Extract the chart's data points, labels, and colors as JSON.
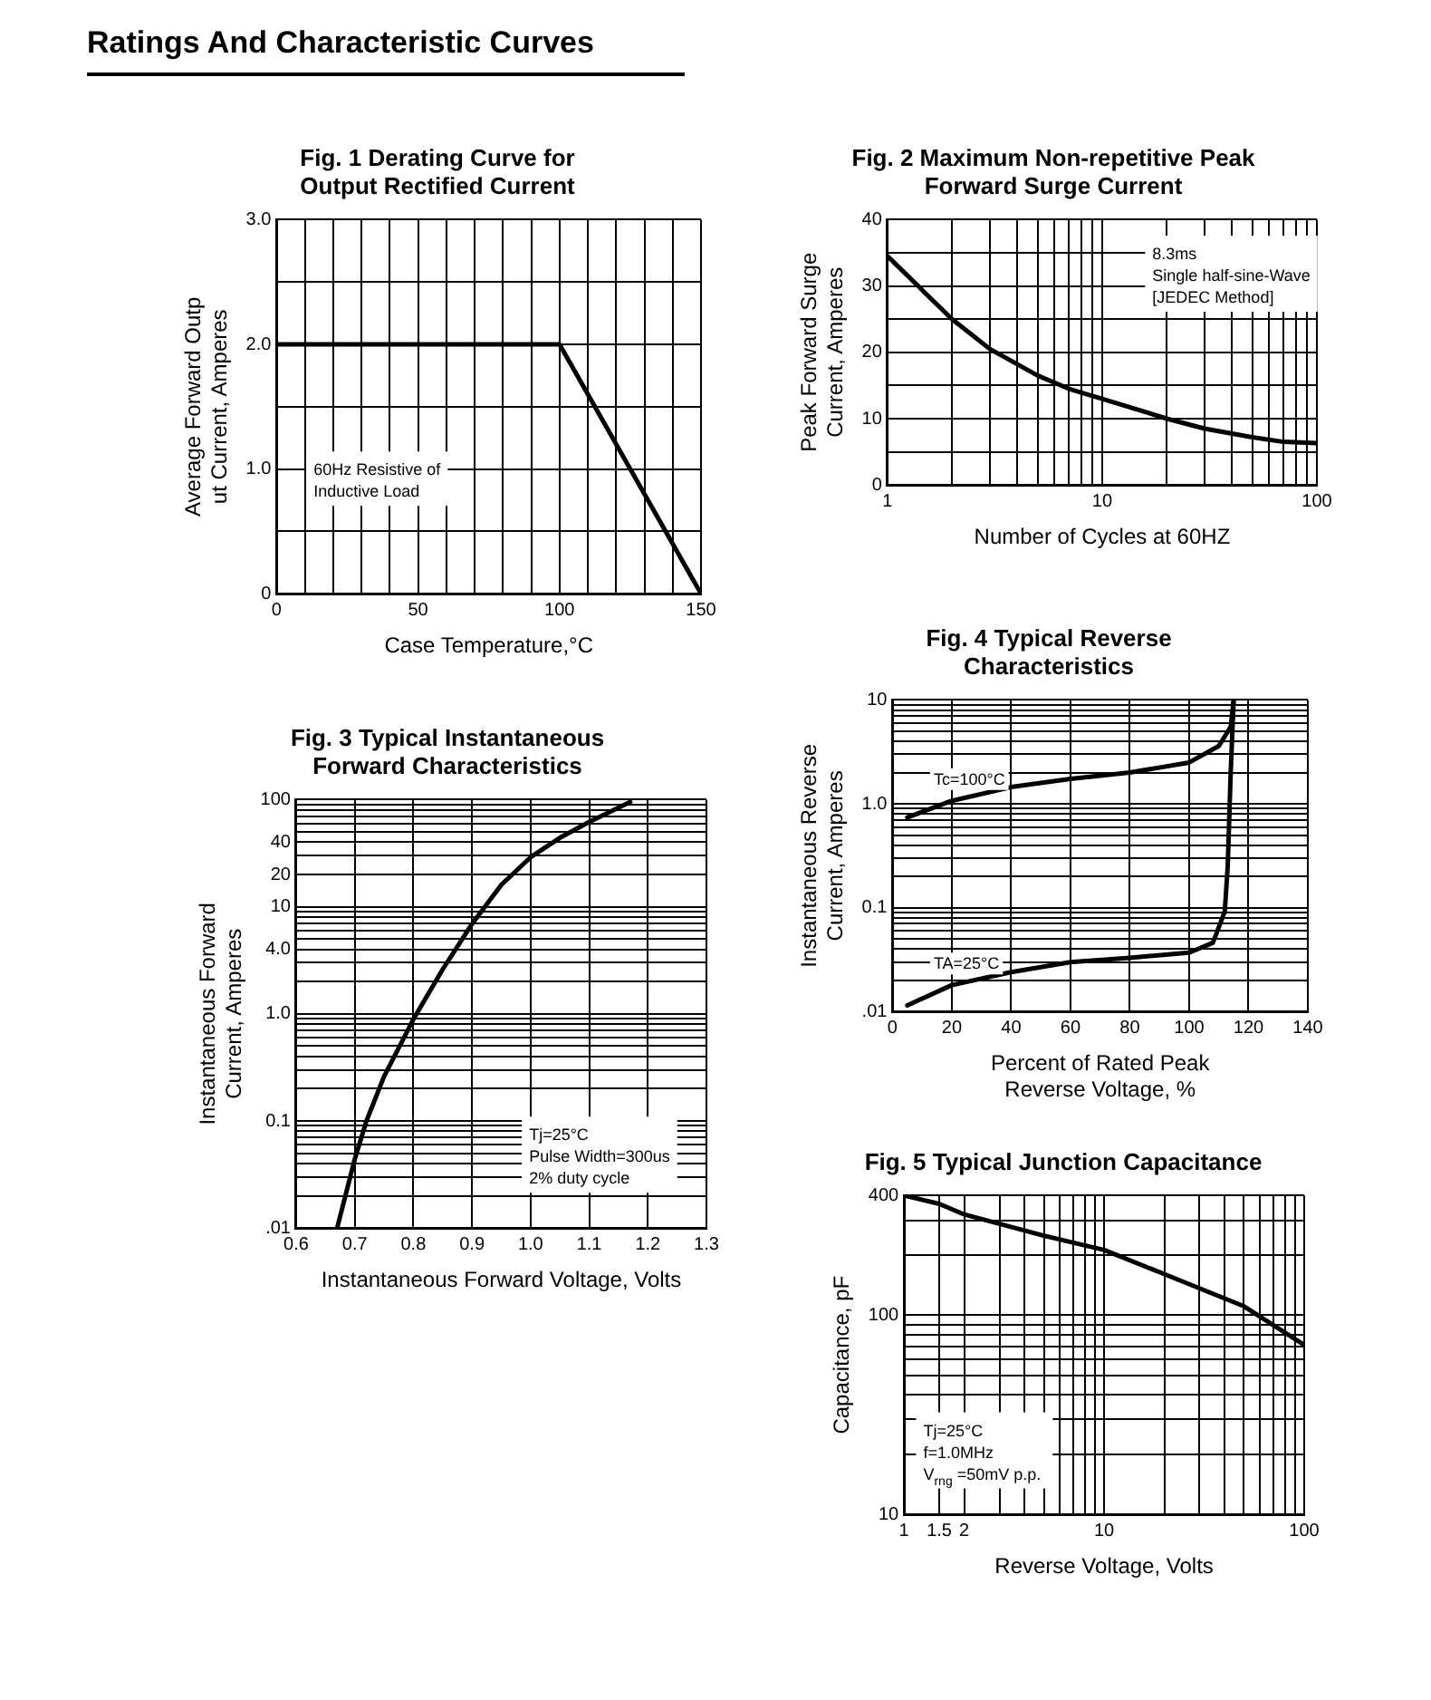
{
  "chart_data": [
    {
      "type": "other",
      "title": "Ratings And Characteristic Curves"
    },
    {
      "type": "line",
      "title": "Fig. 1 Derating Curve for\nOutput Rectified Current",
      "xlabel": "Case Temperature,°C",
      "ylabel": "Average Forward Outp\nut Current, Amperes",
      "xlim": [
        0,
        150
      ],
      "ylim": [
        0,
        3
      ],
      "xticks": [
        0,
        {
          "value": 10,
          "label": null
        },
        {
          "value": 20,
          "label": null
        },
        {
          "value": 30,
          "label": null
        },
        {
          "value": 40,
          "label": null
        },
        50,
        {
          "value": 60,
          "label": null
        },
        {
          "value": 70,
          "label": null
        },
        {
          "value": 80,
          "label": null
        },
        {
          "value": 90,
          "label": null
        },
        100,
        {
          "value": 110,
          "label": null
        },
        {
          "value": 120,
          "label": null
        },
        {
          "value": 130,
          "label": null
        },
        {
          "value": 140,
          "label": null
        },
        150
      ],
      "yticks": [
        0,
        {
          "value": 0.5,
          "label": null
        },
        {
          "value": 1,
          "label": "1.0"
        },
        {
          "value": 1.5,
          "label": null
        },
        {
          "value": 2,
          "label": "2.0"
        },
        {
          "value": 2.5,
          "label": null
        },
        {
          "value": 3,
          "label": "3.0"
        }
      ],
      "grid": true,
      "marker": "none",
      "line_style": "solid",
      "annotations": [
        "60Hz Resistive of\nInductive Load"
      ],
      "series": [
        {
          "color": "#000000",
          "x": [
            0,
            100,
            150
          ],
          "values": [
            2,
            2,
            0
          ]
        }
      ]
    },
    {
      "type": "line",
      "title": "Fig. 2 Maximum Non-repetitive Peak\nForward Surge Current",
      "xlabel": "Number of Cycles at 60HZ",
      "ylabel": "Peak Forward Surge\nCurrent, Amperes",
      "log": "x",
      "xlim": [
        1,
        100
      ],
      "ylim": [
        0,
        40
      ],
      "xticks": [
        1,
        {
          "value": 2,
          "label": null
        },
        {
          "value": 3,
          "label": null
        },
        {
          "value": 4,
          "label": null
        },
        {
          "value": 5,
          "label": null
        },
        {
          "value": 6,
          "label": null
        },
        {
          "value": 7,
          "label": null
        },
        {
          "value": 8,
          "label": null
        },
        {
          "value": 9,
          "label": null
        },
        10,
        {
          "value": 20,
          "label": null
        },
        {
          "value": 30,
          "label": null
        },
        {
          "value": 40,
          "label": null
        },
        {
          "value": 50,
          "label": null
        },
        {
          "value": 60,
          "label": null
        },
        {
          "value": 70,
          "label": null
        },
        {
          "value": 80,
          "label": null
        },
        {
          "value": 90,
          "label": null
        },
        100
      ],
      "yticks": [
        0,
        {
          "value": 5,
          "label": null
        },
        10,
        {
          "value": 15,
          "label": null
        },
        20,
        {
          "value": 25,
          "label": null
        },
        30,
        {
          "value": 35,
          "label": null
        },
        40
      ],
      "grid": true,
      "marker": "none",
      "line_style": "solid",
      "annotations": [
        "8.3ms\nSingle half-sine-Wave\n[JEDEC Method]"
      ],
      "series": [
        {
          "color": "#000000",
          "x": [
            1,
            2,
            3,
            5,
            7,
            10,
            20,
            30,
            50,
            70,
            100
          ],
          "values": [
            34.5,
            25,
            20.5,
            16.5,
            14.5,
            13,
            10,
            8.5,
            7.2,
            6.5,
            6.3
          ]
        }
      ]
    },
    {
      "type": "line",
      "title": "Fig. 3 Typical Instantaneous\nForward Characteristics",
      "xlabel": "Instantaneous Forward Voltage, Volts",
      "ylabel": "Instantaneous Forward\nCurrent, Amperes",
      "log": "y",
      "xlim": [
        0.6,
        1.3
      ],
      "ylim": [
        0.01,
        100
      ],
      "xticks": [
        0.6,
        0.7,
        0.8,
        0.9,
        {
          "value": 1,
          "label": "1.0"
        },
        1.1,
        1.2,
        1.3
      ],
      "yticks": [
        {
          "value": 0.01,
          "label": ".01"
        },
        {
          "value": 0.02,
          "label": null
        },
        {
          "value": 0.03,
          "label": null
        },
        {
          "value": 0.04,
          "label": null
        },
        {
          "value": 0.05,
          "label": null
        },
        {
          "value": 0.06,
          "label": null
        },
        {
          "value": 0.07,
          "label": null
        },
        {
          "value": 0.08,
          "label": null
        },
        {
          "value": 0.09,
          "label": null
        },
        0.1,
        {
          "value": 0.2,
          "label": null
        },
        {
          "value": 0.3,
          "label": null
        },
        {
          "value": 0.4,
          "label": null
        },
        {
          "value": 0.5,
          "label": null
        },
        {
          "value": 0.6,
          "label": null
        },
        {
          "value": 0.7,
          "label": null
        },
        {
          "value": 0.8,
          "label": null
        },
        {
          "value": 0.9,
          "label": null
        },
        {
          "value": 1,
          "label": "1.0"
        },
        {
          "value": 2,
          "label": null
        },
        {
          "value": 3,
          "label": null
        },
        {
          "value": 4,
          "label": "4.0"
        },
        {
          "value": 5,
          "label": null
        },
        {
          "value": 6,
          "label": null
        },
        {
          "value": 7,
          "label": null
        },
        {
          "value": 8,
          "label": null
        },
        {
          "value": 9,
          "label": null
        },
        10,
        20,
        {
          "value": 30,
          "label": null
        },
        40,
        {
          "value": 50,
          "label": null
        },
        {
          "value": 60,
          "label": null
        },
        {
          "value": 70,
          "label": null
        },
        {
          "value": 80,
          "label": null
        },
        {
          "value": 90,
          "label": null
        },
        100
      ],
      "grid": true,
      "marker": "none",
      "line_style": "solid",
      "annotations": [
        "Tj=25°C\nPulse Width=300us\n2% duty cycle"
      ],
      "series": [
        {
          "color": "#000000",
          "x": [
            0.67,
            0.7,
            0.72,
            0.75,
            0.8,
            0.85,
            0.9,
            0.95,
            1.0,
            1.05,
            1.1,
            1.17
          ],
          "values": [
            0.01,
            0.044,
            0.1,
            0.26,
            0.89,
            2.6,
            6.9,
            16,
            29,
            44,
            62,
            95
          ]
        }
      ]
    },
    {
      "type": "line",
      "title": "Fig. 4 Typical Reverse\nCharacteristics",
      "xlabel": "Percent of Rated Peak\nReverse Voltage, %",
      "ylabel": "Instantaneous Reverse\nCurrent, Amperes",
      "log": "y",
      "xlim": [
        0,
        140
      ],
      "ylim": [
        0.01,
        10
      ],
      "xticks": [
        0,
        20,
        40,
        60,
        80,
        100,
        120,
        140
      ],
      "yticks": [
        {
          "value": 0.01,
          "label": ".01"
        },
        {
          "value": 0.02,
          "label": null
        },
        {
          "value": 0.03,
          "label": null
        },
        {
          "value": 0.04,
          "label": null
        },
        {
          "value": 0.05,
          "label": null
        },
        {
          "value": 0.06,
          "label": null
        },
        {
          "value": 0.07,
          "label": null
        },
        {
          "value": 0.08,
          "label": null
        },
        {
          "value": 0.09,
          "label": null
        },
        0.1,
        {
          "value": 0.2,
          "label": null
        },
        {
          "value": 0.3,
          "label": null
        },
        {
          "value": 0.4,
          "label": null
        },
        {
          "value": 0.5,
          "label": null
        },
        {
          "value": 0.6,
          "label": null
        },
        {
          "value": 0.7,
          "label": null
        },
        {
          "value": 0.8,
          "label": null
        },
        {
          "value": 0.9,
          "label": null
        },
        {
          "value": 1,
          "label": "1.0"
        },
        {
          "value": 2,
          "label": null
        },
        {
          "value": 3,
          "label": null
        },
        {
          "value": 4,
          "label": null
        },
        {
          "value": 5,
          "label": null
        },
        {
          "value": 6,
          "label": null
        },
        {
          "value": 7,
          "label": null
        },
        {
          "value": 8,
          "label": null
        },
        {
          "value": 9,
          "label": null
        },
        10
      ],
      "grid": true,
      "marker": "none",
      "line_style": "solid",
      "series": [
        {
          "name": "Tc=100°C",
          "color": "#000000",
          "x": [
            5,
            20,
            40,
            60,
            80,
            100,
            110,
            114,
            115
          ],
          "values": [
            0.74,
            1.07,
            1.45,
            1.74,
            2.0,
            2.5,
            3.6,
            5.5,
            10
          ]
        },
        {
          "name": "TA=25°C",
          "color": "#000000",
          "x": [
            5,
            20,
            40,
            60,
            80,
            100,
            108,
            112,
            113,
            114,
            115
          ],
          "values": [
            0.0115,
            0.018,
            0.024,
            0.03,
            0.033,
            0.037,
            0.046,
            0.092,
            0.25,
            2.0,
            10
          ]
        }
      ]
    },
    {
      "type": "line",
      "title": "Fig. 5 Typical Junction Capacitance",
      "xlabel": "Reverse Voltage, Volts",
      "ylabel": "Capacitance, pF",
      "log": "xy",
      "xlim": [
        1,
        100
      ],
      "ylim": [
        10,
        400
      ],
      "xticks": [
        1,
        {
          "value": 1.5,
          "label": "1.5"
        },
        2,
        {
          "value": 3,
          "label": null
        },
        {
          "value": 4,
          "label": null
        },
        {
          "value": 5,
          "label": null
        },
        {
          "value": 6,
          "label": null
        },
        {
          "value": 7,
          "label": null
        },
        {
          "value": 8,
          "label": null
        },
        {
          "value": 9,
          "label": null
        },
        10,
        {
          "value": 20,
          "label": null
        },
        {
          "value": 30,
          "label": null
        },
        {
          "value": 40,
          "label": null
        },
        {
          "value": 50,
          "label": null
        },
        {
          "value": 60,
          "label": null
        },
        {
          "value": 70,
          "label": null
        },
        {
          "value": 80,
          "label": null
        },
        {
          "value": 90,
          "label": null
        },
        100
      ],
      "yticks": [
        10,
        {
          "value": 20,
          "label": null
        },
        {
          "value": 30,
          "label": null
        },
        {
          "value": 40,
          "label": null
        },
        {
          "value": 50,
          "label": null
        },
        {
          "value": 60,
          "label": null
        },
        {
          "value": 70,
          "label": null
        },
        {
          "value": 80,
          "label": null
        },
        {
          "value": 90,
          "label": null
        },
        100,
        {
          "value": 200,
          "label": null
        },
        {
          "value": 300,
          "label": null
        },
        400
      ],
      "grid": true,
      "marker": "none",
      "line_style": "solid",
      "annotations": [
        "Tj=25°C\nf=1.0MHz\nV$_{rng}$ =50mV p.p."
      ],
      "series": [
        {
          "color": "#000000",
          "x": [
            1,
            1.5,
            2,
            5,
            10,
            20,
            50,
            100
          ],
          "values": [
            400,
            363,
            321,
            251,
            213,
            161,
            111,
            71
          ]
        }
      ]
    }
  ]
}
